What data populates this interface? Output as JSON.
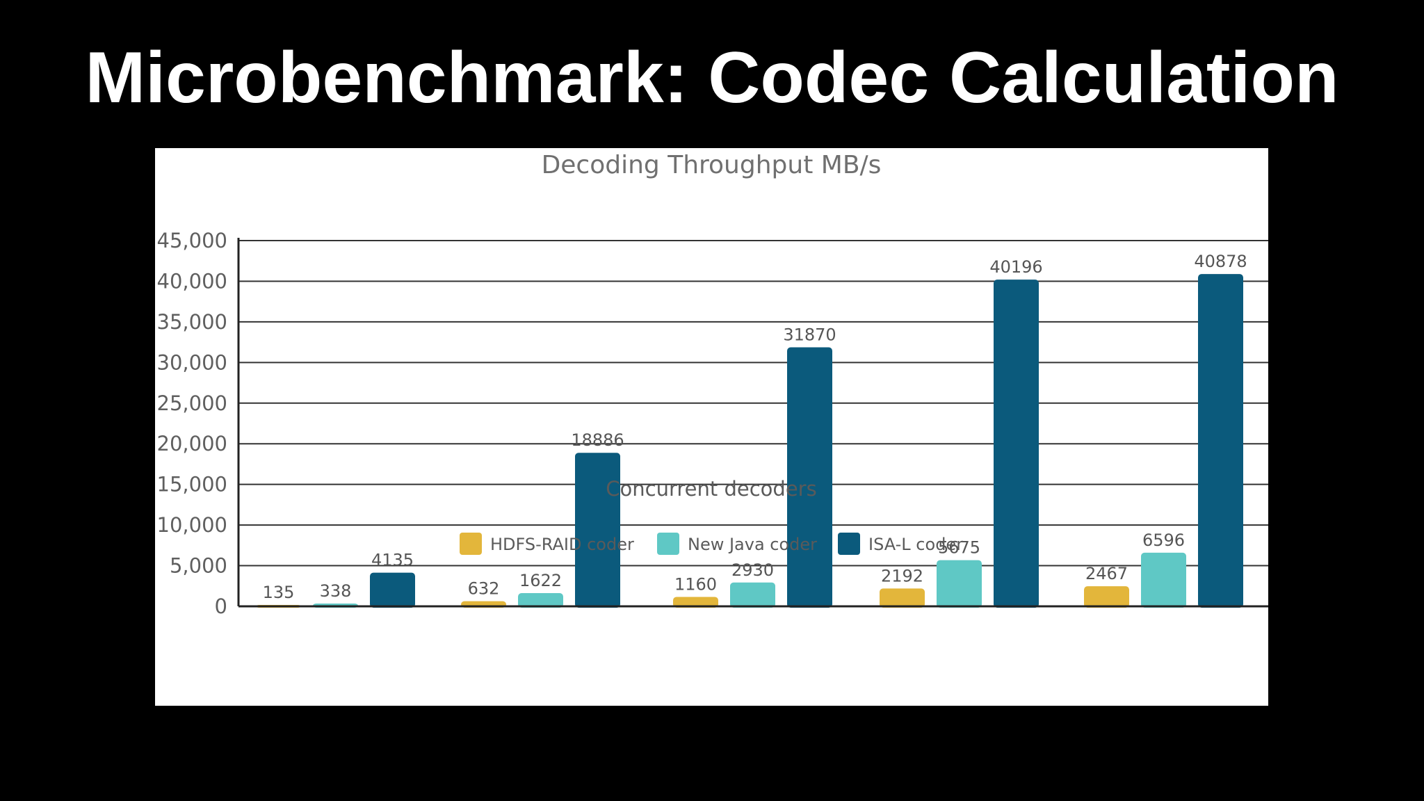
{
  "slide": {
    "title": "Microbenchmark: Codec Calculation"
  },
  "chart_data": {
    "type": "bar",
    "title": "Decoding Throughput MB/s",
    "xlabel": "Concurrent decoders",
    "ylabel": "",
    "ylim": [
      0,
      45000
    ],
    "yticks": [
      0,
      5000,
      10000,
      15000,
      20000,
      25000,
      30000,
      35000,
      40000,
      45000
    ],
    "ytick_labels": [
      "0",
      "5,000",
      "10,000",
      "15,000",
      "20,000",
      "25,000",
      "30,000",
      "35,000",
      "40,000",
      "45,000"
    ],
    "categories": [
      "",
      "",
      "",
      "",
      ""
    ],
    "grid": true,
    "legend_position": "bottom",
    "series": [
      {
        "name": "HDFS-RAID coder",
        "color": "#e3b63b",
        "values": [
          135,
          632,
          1160,
          2192,
          2467
        ],
        "labels": [
          "135",
          "632",
          "1160",
          "2192",
          "2467"
        ]
      },
      {
        "name": "New Java coder",
        "color": "#5fc8c5",
        "values": [
          338,
          1622,
          2930,
          5675,
          6596
        ],
        "labels": [
          "338",
          "1622",
          "2930",
          "5675",
          "6596"
        ]
      },
      {
        "name": "ISA-L coder",
        "color": "#0b5a7c",
        "values": [
          4135,
          18886,
          31870,
          40196,
          40878
        ],
        "labels": [
          "4135",
          "18886",
          "31870",
          "40196",
          "40878"
        ]
      }
    ]
  }
}
